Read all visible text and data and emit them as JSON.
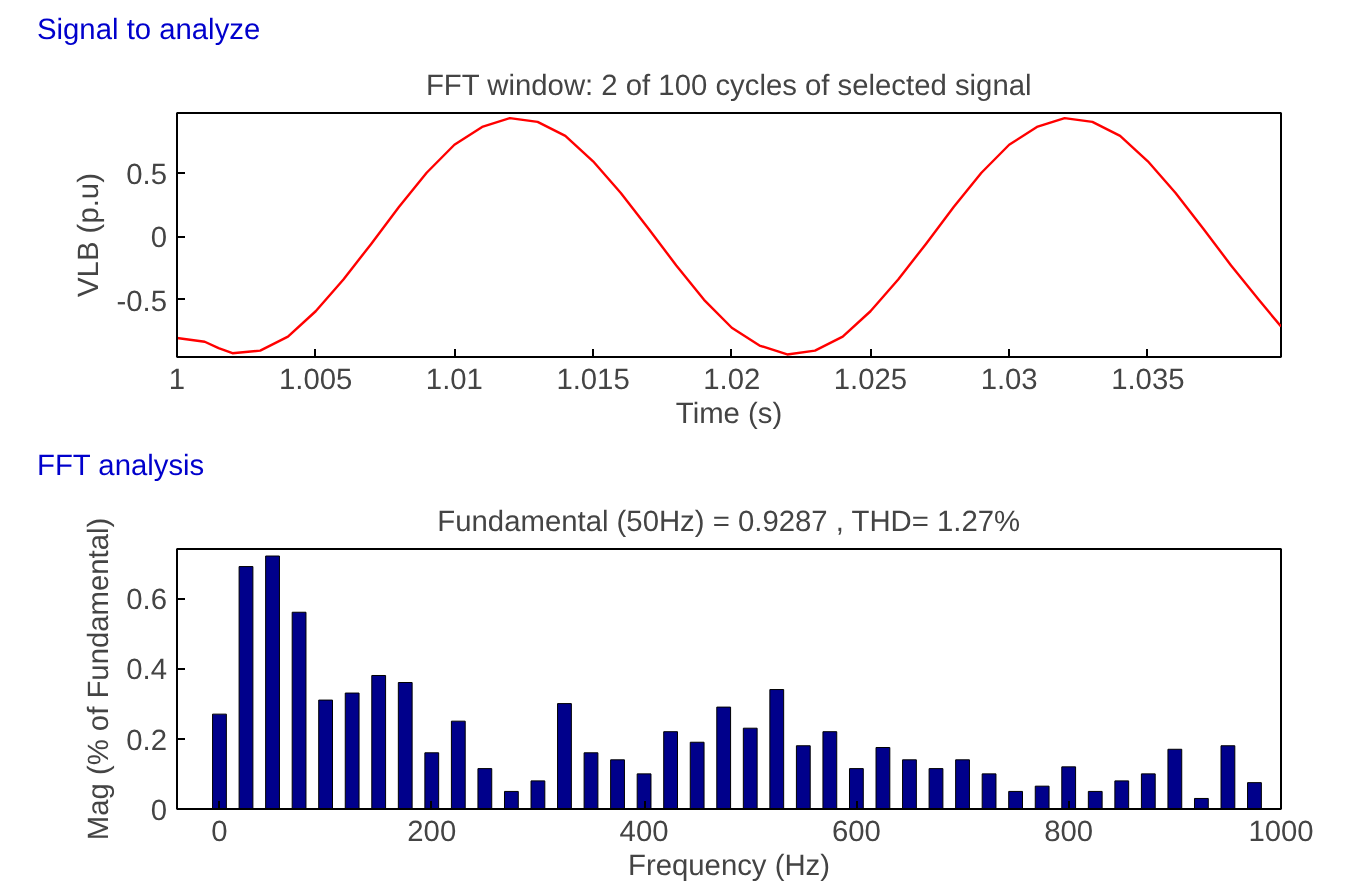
{
  "chart_data": [
    {
      "type": "line",
      "title": "FFT window: 2 of 100 cycles of selected signal",
      "xlabel": "Time (s)",
      "ylabel": "VLB (p.u)",
      "annotations": [
        "Signal to analyze"
      ],
      "x": [
        1.0,
        1.001,
        1.0015,
        1.002,
        1.003,
        1.004,
        1.005,
        1.006,
        1.007,
        1.008,
        1.009,
        1.01,
        1.011,
        1.012,
        1.013,
        1.014,
        1.015,
        1.016,
        1.017,
        1.018,
        1.019,
        1.02,
        1.021,
        1.022,
        1.023,
        1.024,
        1.025,
        1.026,
        1.027,
        1.028,
        1.029,
        1.03,
        1.031,
        1.032,
        1.033,
        1.034,
        1.035,
        1.036,
        1.037,
        1.038,
        1.039,
        1.0398
      ],
      "series": [
        {
          "color": "#ff0000",
          "values": [
            -0.8,
            -0.83,
            -0.88,
            -0.92,
            -0.9,
            -0.79,
            -0.59,
            -0.34,
            -0.06,
            0.23,
            0.5,
            0.72,
            0.86,
            0.93,
            0.9,
            0.79,
            0.59,
            0.34,
            0.06,
            -0.23,
            -0.5,
            -0.72,
            -0.86,
            -0.93,
            -0.9,
            -0.79,
            -0.59,
            -0.34,
            -0.06,
            0.23,
            0.5,
            0.72,
            0.86,
            0.93,
            0.9,
            0.79,
            0.59,
            0.34,
            0.06,
            -0.23,
            -0.5,
            -0.71
          ]
        }
      ],
      "xlim": [
        1,
        1.0398
      ],
      "ylim": [
        -0.95,
        0.97
      ],
      "xticks": [
        1,
        1.005,
        1.01,
        1.015,
        1.02,
        1.025,
        1.03,
        1.035
      ],
      "yticks": [
        -0.5,
        0,
        0.5
      ],
      "grid": false
    },
    {
      "type": "bar",
      "title": "Fundamental (50Hz) = 0.9287 , THD= 1.27%",
      "xlabel": "Frequency (Hz)",
      "ylabel": "Mag (% of Fundamental)",
      "annotations": [
        "FFT analysis"
      ],
      "x": [
        0,
        25,
        50,
        75,
        100,
        125,
        150,
        175,
        200,
        225,
        250,
        275,
        300,
        325,
        350,
        375,
        400,
        425,
        450,
        475,
        500,
        525,
        550,
        575,
        600,
        625,
        650,
        675,
        700,
        725,
        750,
        775,
        800,
        825,
        850,
        875,
        900,
        925,
        950,
        975
      ],
      "series": [
        {
          "color": "#00008b",
          "values": [
            0.27,
            0.69,
            0.72,
            0.56,
            0.31,
            0.33,
            0.38,
            0.36,
            0.16,
            0.25,
            0.115,
            0.05,
            0.08,
            0.3,
            0.16,
            0.14,
            0.1,
            0.22,
            0.19,
            0.29,
            0.23,
            0.34,
            0.18,
            0.22,
            0.115,
            0.175,
            0.14,
            0.115,
            0.14,
            0.1,
            0.05,
            0.065,
            0.12,
            0.05,
            0.08,
            0.1,
            0.17,
            0.03,
            0.18,
            0.075
          ]
        }
      ],
      "xlim": [
        -40,
        1000
      ],
      "ylim": [
        0,
        0.74
      ],
      "xticks": [
        0,
        200,
        400,
        600,
        800,
        1000
      ],
      "yticks": [
        0,
        0.2,
        0.4,
        0.6
      ],
      "grid": false
    }
  ]
}
